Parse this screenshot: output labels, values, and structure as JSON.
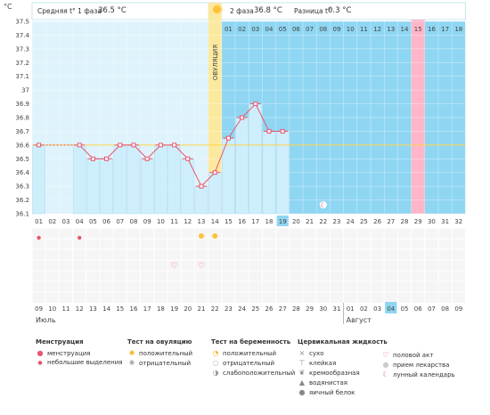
{
  "header": {
    "phase1_label": "Средняя t° 1 фаза",
    "phase1_value": "36.5 °C",
    "phase2_label": "2 фаза",
    "phase2_value": "36.8 °C",
    "diff_label": "Разница t°",
    "diff_value": "0.3 °C",
    "ovulation_label": "ОВУЛЯЦИЯ"
  },
  "chart_data": {
    "type": "line",
    "ylabel": "°C",
    "ylim": [
      36.1,
      37.5
    ],
    "yticks": [
      "36.1",
      "36.2",
      "36.3",
      "36.4",
      "36.5",
      "36.6",
      "36.7",
      "36.8",
      "36.9",
      "37",
      "37.1",
      "37.2",
      "37.3",
      "37.4",
      "37.5"
    ],
    "cycle_days": [
      "01",
      "02",
      "03",
      "04",
      "05",
      "06",
      "07",
      "08",
      "09",
      "10",
      "11",
      "12",
      "13",
      "14",
      "15",
      "16",
      "17",
      "18",
      "19",
      "20",
      "21",
      "22",
      "23",
      "24",
      "25",
      "26",
      "27",
      "28",
      "29",
      "30",
      "31",
      "32"
    ],
    "phase2_days": [
      "01",
      "02",
      "03",
      "04",
      "05",
      "06",
      "07",
      "08",
      "09",
      "10",
      "11",
      "12",
      "13",
      "14",
      "15",
      "16",
      "17",
      "18"
    ],
    "temperatures": [
      36.6,
      null,
      null,
      36.6,
      36.5,
      36.5,
      36.6,
      36.6,
      36.5,
      36.6,
      36.6,
      36.5,
      36.3,
      36.4,
      36.65,
      36.8,
      36.9,
      36.7,
      36.7,
      null,
      null,
      null,
      null,
      null,
      null,
      null,
      null,
      null,
      null,
      null,
      null,
      null
    ],
    "coverline": 36.6,
    "ovulation_day": 14,
    "current_day": 19,
    "highlight_day": 29,
    "dates": [
      "09",
      "10",
      "11",
      "12",
      "13",
      "14",
      "15",
      "16",
      "17",
      "18",
      "19",
      "20",
      "21",
      "22",
      "23",
      "24",
      "25",
      "26",
      "27",
      "28",
      "29",
      "30",
      "31",
      "01",
      "02",
      "03",
      "04",
      "05",
      "06",
      "07",
      "08",
      "09"
    ],
    "weekend_dates": [
      "09",
      "10",
      "16",
      "17",
      "23",
      "24",
      "30",
      "31",
      "06",
      "07"
    ],
    "months": [
      "Июль",
      "Август"
    ],
    "menstruation_days": [
      1,
      4
    ],
    "ovulation_test_days": [
      13,
      14
    ],
    "intercourse_days": [
      11,
      13
    ],
    "lunar_day": 22
  },
  "colors": {
    "phase1": "#dff3fc",
    "phase2": "#8fd6f2",
    "ovulation": "#fbe9a0",
    "bar": "#cfeefc",
    "line": "#e8566e",
    "highlight": "#ffb6c8",
    "coverline": "#ffd54a"
  },
  "legend": {
    "menstruation": {
      "title": "Менструация",
      "items": [
        "менструация",
        "небольшие выделения"
      ]
    },
    "ovulation_test": {
      "title": "Тест на овуляцию",
      "items": [
        "положительный",
        "отрицательный"
      ]
    },
    "pregnancy_test": {
      "title": "Тест на беременность",
      "items": [
        "положительный",
        "отрицательный",
        "слабоположительный"
      ]
    },
    "cervical": {
      "title": "Цервикальная жидкость",
      "items": [
        "сухо",
        "клейкая",
        "кремообразная",
        "водянистая",
        "яичный белок"
      ]
    },
    "other": {
      "items": [
        "половой акт",
        "прием лекарства",
        "лунный календарь"
      ]
    }
  }
}
